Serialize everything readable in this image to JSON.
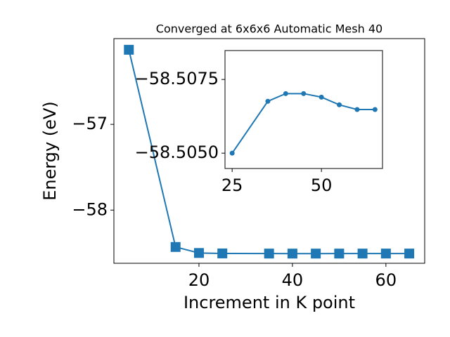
{
  "chart_data": [
    {
      "type": "line",
      "title": "Converged at 6x6x6 Automatic Mesh 40",
      "xlabel": "Increment in K point",
      "ylabel": "Energy (eV)",
      "x": [
        5,
        15,
        20,
        25,
        35,
        40,
        45,
        50,
        55,
        60,
        65
      ],
      "series": [
        {
          "color": "#1f77b4",
          "marker": "square",
          "values": [
            -56.13,
            -58.43,
            -58.5,
            -58.505,
            -58.50676,
            -58.50702,
            -58.50702,
            -58.5069,
            -58.50664,
            -58.50648,
            -58.50648
          ]
        }
      ],
      "xlim": [
        1.8,
        68.3
      ],
      "ylim": [
        -58.62,
        -56.0
      ],
      "xticks": [
        20,
        40,
        60
      ],
      "yticks": [
        {
          "value": -57,
          "label": "−57"
        },
        {
          "value": -58,
          "label": "−58"
        }
      ]
    },
    {
      "type": "line",
      "x": [
        25,
        35,
        40,
        45,
        50,
        55,
        60,
        65
      ],
      "series": [
        {
          "color": "#1f77b4",
          "marker": "circle",
          "values": [
            -58.505,
            -58.50676,
            -58.50702,
            -58.50702,
            -58.5069,
            -58.50664,
            -58.50648,
            -58.50648
          ]
        }
      ],
      "xlim": [
        23.0,
        67.1
      ],
      "ylim": [
        -58.50448,
        -58.50848
      ],
      "xticks": [
        25,
        50
      ],
      "yticks": [
        {
          "value": -58.5075,
          "label": "−58.5075"
        },
        {
          "value": -58.505,
          "label": "−58.5050"
        }
      ]
    }
  ]
}
